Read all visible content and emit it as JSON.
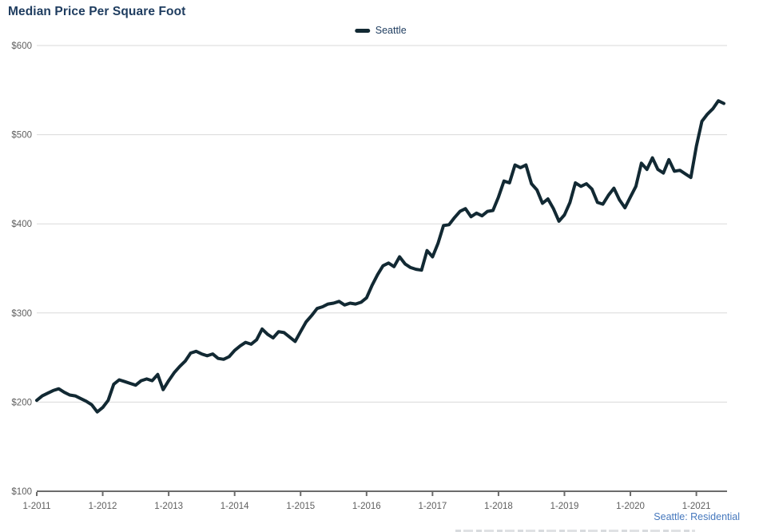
{
  "title": "Median Price Per Square Foot",
  "legend": {
    "label": "Seattle"
  },
  "footnote": "Seattle: Residential",
  "colors": {
    "line": "#122933",
    "title_text": "#1e3c5f",
    "legend_text": "#1e3c5f",
    "axis_text": "#5f5f5f",
    "gridline": "#d9d9d9",
    "axis_line": "#6b6b6b",
    "footnote_text": "#4678bd",
    "background": "#ffffff"
  },
  "chart_data": {
    "type": "line",
    "title": "Median Price Per Square Foot",
    "legend_entries": [
      "Seattle"
    ],
    "legend_position": "top-center",
    "grid": "horizontal gridlines only",
    "ylim": [
      100,
      600
    ],
    "y_tick_labels": [
      "$100",
      "$200",
      "$300",
      "$400",
      "$500",
      "$600"
    ],
    "y_tick_values": [
      100,
      200,
      300,
      400,
      500,
      600
    ],
    "x_tick_labels": [
      "1-2011",
      "1-2012",
      "1-2013",
      "1-2014",
      "1-2015",
      "1-2016",
      "1-2017",
      "1-2018",
      "1-2019",
      "1-2020",
      "1-2021"
    ],
    "x_tick_month_indices": [
      0,
      12,
      24,
      36,
      48,
      60,
      72,
      84,
      96,
      108,
      120
    ],
    "x_start_month": "1-2011",
    "x_end_month": "6-2021",
    "series": [
      {
        "name": "Seattle",
        "color": "#122933",
        "values": [
          202,
          207,
          210,
          213,
          215,
          211,
          208,
          207,
          204,
          201,
          197,
          189,
          194,
          202,
          220,
          225,
          223,
          221,
          219,
          224,
          226,
          224,
          231,
          214,
          224,
          233,
          240,
          246,
          255,
          257,
          254,
          252,
          254,
          249,
          248,
          251,
          258,
          263,
          267,
          265,
          270,
          282,
          276,
          272,
          279,
          278,
          273,
          268,
          279,
          290,
          297,
          305,
          307,
          310,
          311,
          313,
          309,
          311,
          310,
          312,
          317,
          331,
          343,
          353,
          356,
          352,
          363,
          355,
          351,
          349,
          348,
          370,
          363,
          378,
          398,
          399,
          407,
          414,
          417,
          408,
          412,
          409,
          414,
          415,
          430,
          448,
          446,
          466,
          463,
          466,
          445,
          438,
          423,
          428,
          417,
          403,
          410,
          424,
          446,
          442,
          445,
          439,
          424,
          422,
          432,
          440,
          427,
          418,
          430,
          442,
          468,
          461,
          474,
          461,
          457,
          472,
          459,
          460,
          456,
          452,
          487,
          515,
          523,
          529,
          538,
          535
        ]
      }
    ]
  }
}
